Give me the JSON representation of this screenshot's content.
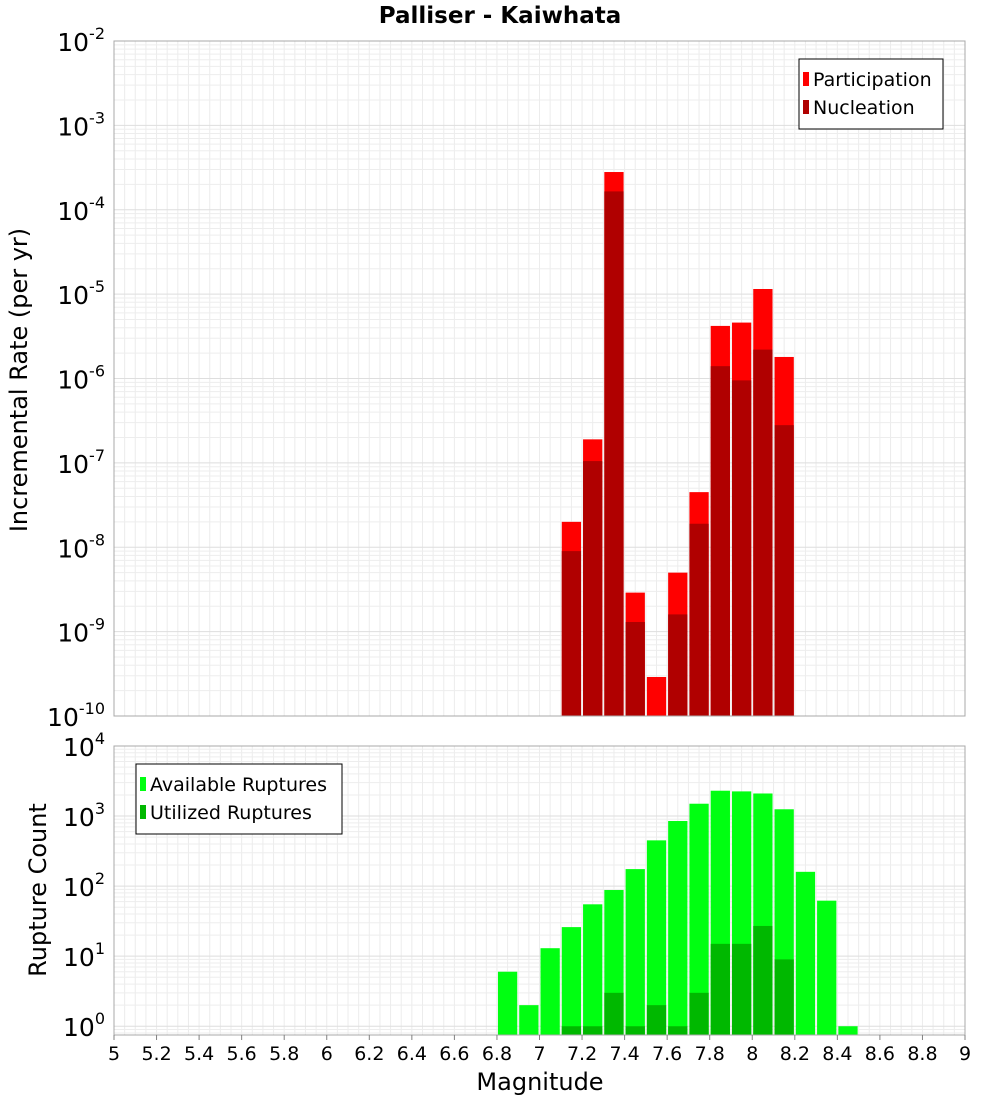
{
  "chart_data": [
    {
      "type": "bar",
      "title": "Palliser - Kaiwhata",
      "xlabel": "",
      "ylabel": "Incremental Rate (per yr)",
      "y_scale": "log",
      "ylim": [
        1e-10,
        0.01
      ],
      "y_ticks": [
        {
          "base": "10",
          "exp": "-10"
        },
        {
          "base": "10",
          "exp": "-9"
        },
        {
          "base": "10",
          "exp": "-8"
        },
        {
          "base": "10",
          "exp": "-7"
        },
        {
          "base": "10",
          "exp": "-6"
        },
        {
          "base": "10",
          "exp": "-5"
        },
        {
          "base": "10",
          "exp": "-4"
        },
        {
          "base": "10",
          "exp": "-3"
        },
        {
          "base": "10",
          "exp": "-2"
        }
      ],
      "xlim": [
        5,
        9
      ],
      "bin_width": 0.1,
      "grid": true,
      "legend_position": "top-right",
      "x": [
        7.15,
        7.25,
        7.35,
        7.45,
        7.55,
        7.65,
        7.75,
        7.85,
        7.95,
        8.05,
        8.15
      ],
      "series": [
        {
          "name": "Participation",
          "color": "#ff0000",
          "values": [
            2e-08,
            1.9e-07,
            0.00028,
            2.9e-09,
            2.9e-10,
            5e-09,
            4.5e-08,
            4.2e-06,
            4.6e-06,
            1.15e-05,
            1.8e-06
          ]
        },
        {
          "name": "Nucleation",
          "color": "#b00000",
          "values": [
            9e-09,
            1.05e-07,
            0.000165,
            1.3e-09,
            null,
            1.6e-09,
            1.9e-08,
            1.4e-06,
            9.5e-07,
            2.2e-06,
            2.8e-07
          ]
        }
      ]
    },
    {
      "type": "bar",
      "title": "",
      "xlabel": "Magnitude",
      "ylabel": "Rupture Count",
      "y_scale": "log",
      "ylim": [
        0.75,
        10000
      ],
      "y_ticks": [
        {
          "base": "10",
          "exp": "0"
        },
        {
          "base": "10",
          "exp": "1"
        },
        {
          "base": "10",
          "exp": "2"
        },
        {
          "base": "10",
          "exp": "3"
        },
        {
          "base": "10",
          "exp": "4"
        }
      ],
      "xlim": [
        5,
        9
      ],
      "x_ticks": [
        "5",
        "5.2",
        "5.4",
        "5.6",
        "5.8",
        "6",
        "6.2",
        "6.4",
        "6.6",
        "6.8",
        "7",
        "7.2",
        "7.4",
        "7.6",
        "7.8",
        "8",
        "8.2",
        "8.4",
        "8.6",
        "8.8",
        "9"
      ],
      "bin_width": 0.1,
      "grid": true,
      "legend_position": "top-left",
      "x": [
        6.85,
        6.95,
        7.05,
        7.15,
        7.25,
        7.35,
        7.45,
        7.55,
        7.65,
        7.75,
        7.85,
        7.95,
        8.05,
        8.15,
        8.25,
        8.35,
        8.45
      ],
      "series": [
        {
          "name": "Available Ruptures",
          "color": "#00ff11",
          "values": [
            6,
            2,
            13,
            26,
            55,
            88,
            175,
            450,
            850,
            1500,
            2300,
            2250,
            2100,
            1250,
            160,
            62,
            1
          ]
        },
        {
          "name": "Utilized Ruptures",
          "color": "#00b800",
          "values": [
            null,
            null,
            null,
            1,
            1,
            3,
            1,
            2,
            1,
            3,
            15,
            15,
            27,
            9,
            null,
            null,
            null
          ]
        }
      ]
    }
  ]
}
